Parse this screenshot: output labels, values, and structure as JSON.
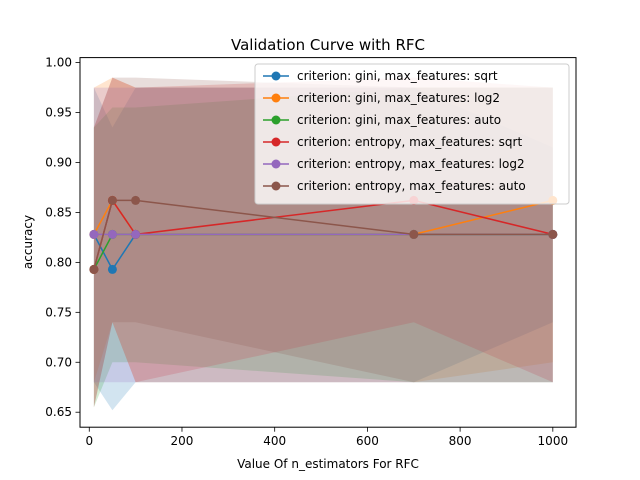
{
  "chart_data": {
    "type": "line",
    "title": "Validation Curve with RFC",
    "xlabel": "Value Of n_estimators For RFC",
    "ylabel": "accuracy",
    "xlim": [
      -20,
      1050
    ],
    "ylim": [
      0.635,
      1.005
    ],
    "x_ticks": [
      0,
      200,
      400,
      600,
      800,
      1000
    ],
    "y_ticks": [
      0.65,
      0.7,
      0.75,
      0.8,
      0.85,
      0.9,
      0.95,
      1.0
    ],
    "x_tick_labels": [
      "0",
      "200",
      "400",
      "600",
      "800",
      "1000"
    ],
    "y_tick_labels": [
      "0.65",
      "0.70",
      "0.75",
      "0.80",
      "0.85",
      "0.90",
      "0.95",
      "1.00"
    ],
    "grid": false,
    "legend_position": "top-right",
    "x": [
      10,
      50,
      100,
      700,
      1000
    ],
    "series": [
      {
        "name": "criterion: gini, max_features: sqrt",
        "color": "#1f77b4",
        "values": [
          0.828,
          0.793,
          0.828,
          0.828,
          0.828
        ],
        "band_lower": [
          0.68,
          0.652,
          0.68,
          0.68,
          0.74
        ],
        "band_upper": [
          0.975,
          0.935,
          0.975,
          0.975,
          0.915
        ]
      },
      {
        "name": "criterion: gini, max_features: log2",
        "color": "#ff7f0e",
        "values": [
          0.828,
          0.862,
          0.828,
          0.828,
          0.862
        ],
        "band_lower": [
          0.68,
          0.74,
          0.68,
          0.68,
          0.7
        ],
        "band_upper": [
          0.975,
          0.985,
          0.975,
          0.975,
          0.975
        ]
      },
      {
        "name": "criterion: gini, max_features: auto",
        "color": "#2ca02c",
        "values": [
          0.793,
          0.828,
          0.828,
          0.828,
          0.828
        ],
        "band_lower": [
          0.655,
          0.7,
          0.7,
          0.68,
          0.68
        ],
        "band_upper": [
          0.935,
          0.955,
          0.955,
          0.975,
          0.975
        ]
      },
      {
        "name": "criterion: entropy, max_features: sqrt",
        "color": "#d62728",
        "values": [
          0.793,
          0.862,
          0.828,
          0.862,
          0.828
        ],
        "band_lower": [
          0.655,
          0.74,
          0.68,
          0.74,
          0.68
        ],
        "band_upper": [
          0.935,
          0.985,
          0.975,
          0.985,
          0.975
        ]
      },
      {
        "name": "criterion: entropy, max_features: log2",
        "color": "#9467bd",
        "values": [
          0.828,
          0.828,
          0.828,
          0.828,
          0.828
        ],
        "band_lower": [
          0.68,
          0.68,
          0.68,
          0.68,
          0.68
        ],
        "band_upper": [
          0.975,
          0.975,
          0.975,
          0.975,
          0.975
        ]
      },
      {
        "name": "criterion: entropy, max_features: auto",
        "color": "#8c564b",
        "values": [
          0.793,
          0.862,
          0.862,
          0.828,
          0.828
        ],
        "band_lower": [
          0.655,
          0.74,
          0.74,
          0.68,
          0.68
        ],
        "band_upper": [
          0.935,
          0.985,
          0.985,
          0.975,
          0.975
        ]
      }
    ]
  }
}
